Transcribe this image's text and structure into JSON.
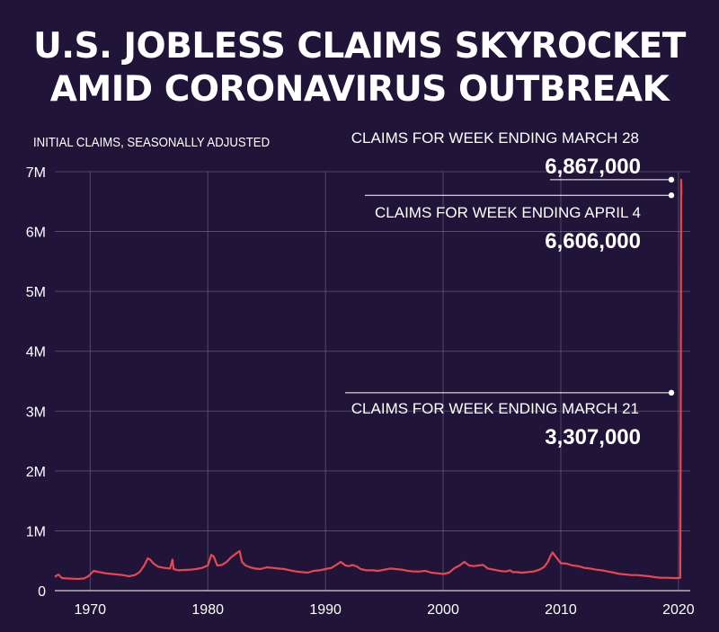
{
  "title_line1": "U.S. JOBLESS CLAIMS SKYROCKET",
  "title_line2": "AMID CORONAVIRUS OUTBREAK",
  "colors": {
    "background": "#201538",
    "line": "#e8474f",
    "grid": "#6e6488",
    "text": "#ffffff"
  },
  "chart_data": {
    "type": "line",
    "title": "U.S. JOBLESS CLAIMS SKYROCKET AMID CORONAVIRUS OUTBREAK",
    "ylabel": "INITIAL CLAIMS, SEASONALLY ADJUSTED",
    "xlabel": "",
    "xlim": [
      1967,
      2021
    ],
    "ylim": [
      0,
      7000000
    ],
    "x_ticks": [
      1970,
      1980,
      1990,
      2000,
      2010,
      2020
    ],
    "x_tick_labels": [
      "1970",
      "1980",
      "1990",
      "2000",
      "2010",
      "2020"
    ],
    "y_ticks": [
      0,
      1000000,
      2000000,
      3000000,
      4000000,
      5000000,
      6000000,
      7000000
    ],
    "y_tick_labels": [
      "0",
      "1M",
      "2M",
      "3M",
      "4M",
      "5M",
      "6M",
      "7M"
    ],
    "grid": true,
    "series": [
      {
        "x": [
          1967.0,
          1967.3,
          1967.6,
          1968.0,
          1968.5,
          1969.0,
          1969.5,
          1969.9,
          1970.3,
          1970.8,
          1971.3,
          1971.8,
          1972.3,
          1972.8,
          1973.3,
          1973.8,
          1974.2,
          1974.6,
          1974.9,
          1975.1,
          1975.4,
          1975.8,
          1976.3,
          1976.8,
          1977.0,
          1977.1,
          1977.5,
          1978.0,
          1978.5,
          1979.0,
          1979.5,
          1980.0,
          1980.3,
          1980.5,
          1980.8,
          1981.2,
          1981.6,
          1982.0,
          1982.4,
          1982.7,
          1982.9,
          1983.2,
          1983.6,
          1984.0,
          1984.5,
          1985.0,
          1985.5,
          1986.0,
          1986.5,
          1987.0,
          1987.5,
          1988.0,
          1988.5,
          1989.0,
          1989.5,
          1990.0,
          1990.5,
          1991.0,
          1991.3,
          1991.7,
          1992.0,
          1992.3,
          1992.7,
          1993.0,
          1993.5,
          1994.0,
          1994.5,
          1995.0,
          1995.5,
          1996.0,
          1996.5,
          1997.0,
          1997.5,
          1998.0,
          1998.5,
          1999.0,
          1999.5,
          2000.0,
          2000.5,
          2001.0,
          2001.4,
          2001.8,
          2002.2,
          2002.6,
          2003.0,
          2003.4,
          2003.8,
          2004.3,
          2004.8,
          2005.3,
          2005.7,
          2005.9,
          2006.2,
          2006.7,
          2007.2,
          2007.7,
          2008.2,
          2008.6,
          2008.9,
          2009.1,
          2009.3,
          2009.6,
          2010.0,
          2010.5,
          2011.0,
          2011.5,
          2012.0,
          2012.5,
          2013.0,
          2013.5,
          2014.0,
          2014.5,
          2015.0,
          2015.5,
          2016.0,
          2016.5,
          2017.0,
          2017.5,
          2018.0,
          2018.5,
          2019.0,
          2019.5,
          2020.0,
          2020.15,
          2020.2,
          2020.23,
          2020.25
        ],
        "values": [
          230000,
          270000,
          210000,
          205000,
          200000,
          195000,
          205000,
          250000,
          330000,
          310000,
          290000,
          280000,
          270000,
          260000,
          240000,
          260000,
          310000,
          420000,
          540000,
          520000,
          450000,
          400000,
          380000,
          370000,
          520000,
          360000,
          340000,
          345000,
          350000,
          360000,
          380000,
          420000,
          600000,
          570000,
          420000,
          430000,
          480000,
          560000,
          620000,
          660000,
          480000,
          420000,
          390000,
          370000,
          360000,
          390000,
          380000,
          370000,
          360000,
          340000,
          320000,
          310000,
          300000,
          330000,
          340000,
          360000,
          380000,
          440000,
          480000,
          420000,
          410000,
          430000,
          400000,
          360000,
          340000,
          340000,
          330000,
          350000,
          370000,
          360000,
          350000,
          330000,
          320000,
          320000,
          330000,
          300000,
          290000,
          280000,
          300000,
          380000,
          420000,
          480000,
          420000,
          410000,
          420000,
          430000,
          370000,
          350000,
          330000,
          320000,
          340000,
          310000,
          310000,
          300000,
          310000,
          320000,
          350000,
          400000,
          480000,
          570000,
          640000,
          560000,
          460000,
          450000,
          420000,
          410000,
          380000,
          370000,
          350000,
          340000,
          320000,
          300000,
          280000,
          270000,
          260000,
          260000,
          250000,
          240000,
          225000,
          215000,
          215000,
          210000,
          210000,
          215000,
          3307000,
          6867000,
          6606000
        ]
      }
    ],
    "annotations": [
      {
        "caption": "CLAIMS FOR WEEK ENDING MARCH 28",
        "value": "6,867,000",
        "x": 2020.23,
        "y": 6867000
      },
      {
        "caption": "CLAIMS FOR WEEK ENDING APRIL 4",
        "value": "6,606,000",
        "x": 2020.25,
        "y": 6606000
      },
      {
        "caption": "CLAIMS FOR WEEK ENDING MARCH 21",
        "value": "3,307,000",
        "x": 2020.2,
        "y": 3307000
      }
    ]
  }
}
